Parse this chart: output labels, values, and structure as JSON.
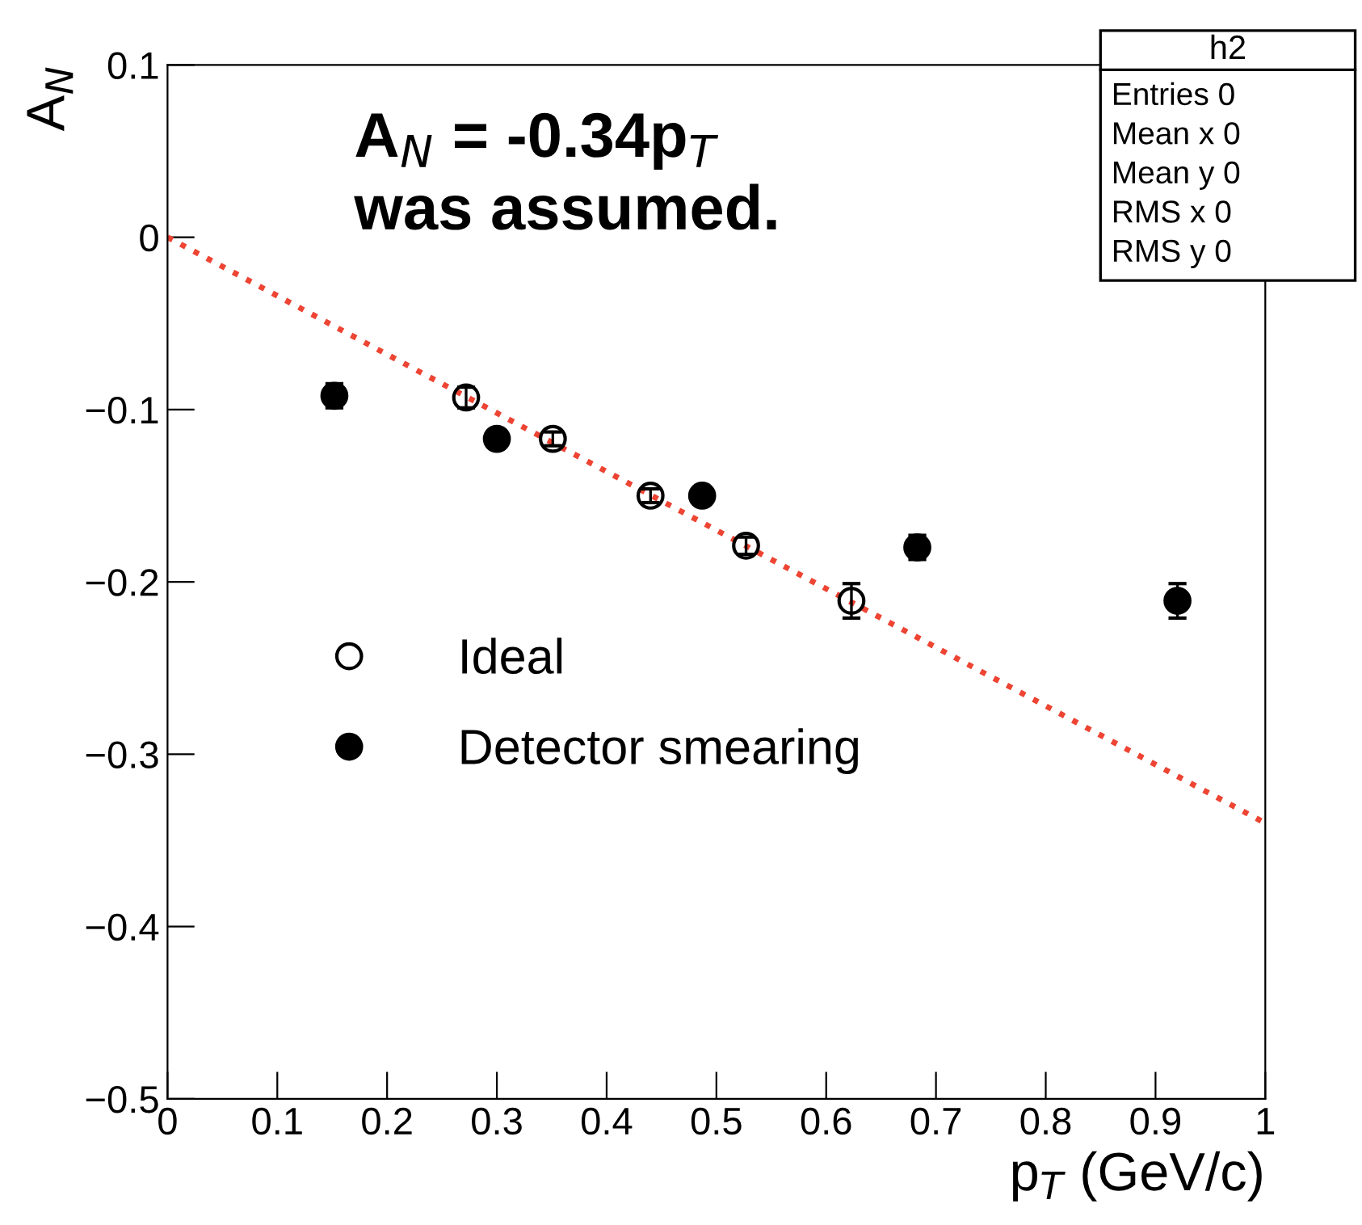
{
  "chart_data": {
    "type": "scatter",
    "xlabel": "p$_{T}$ (GeV/c)",
    "ylabel": "A$_{N}$",
    "xlim": [
      0,
      1
    ],
    "ylim": [
      -0.5,
      0.1
    ],
    "xticks": [
      0,
      0.1,
      0.2,
      0.3,
      0.4,
      0.5,
      0.6,
      0.7,
      0.8,
      0.9,
      1
    ],
    "yticks": [
      {
        "value": -0.5,
        "label": "−0.5"
      },
      {
        "value": -0.4,
        "label": "−0.4"
      },
      {
        "value": -0.3,
        "label": "−0.3"
      },
      {
        "value": -0.2,
        "label": "−0.2"
      },
      {
        "value": -0.1,
        "label": "−0.1"
      },
      0,
      0.1
    ],
    "grid": false,
    "legend": "left",
    "marker": "circle",
    "series": [
      {
        "name": "Ideal",
        "color": "#000000",
        "x": [
          0.272,
          0.351,
          0.44,
          0.527,
          0.623
        ],
        "values": [
          -0.093,
          -0.117,
          -0.15,
          -0.179,
          -0.211
        ],
        "errors": [
          0.006,
          0.004,
          0.004,
          0.005,
          0.01
        ]
      },
      {
        "name": "Detector smearing",
        "color": "#000000",
        "x": [
          0.152,
          0.3,
          0.487,
          0.683,
          0.92
        ],
        "values": [
          -0.092,
          -0.117,
          -0.15,
          -0.18,
          -0.211
        ],
        "errors": [
          0.007,
          0.004,
          0.004,
          0.007,
          0.01
        ]
      },
      {
        "type": "line",
        "color": "#ee4433",
        "line_style": "dotted",
        "marker": "none",
        "x": [
          0,
          1
        ],
        "values": [
          0,
          -0.34
        ]
      }
    ],
    "annotations": [
      "A$_{N}$ = -0.34p$_{T}$",
      "was assumed.",
      "h2",
      "Entries 0",
      "Mean x 0",
      "Mean y 0",
      "RMS x 0",
      "RMS y 0"
    ]
  }
}
